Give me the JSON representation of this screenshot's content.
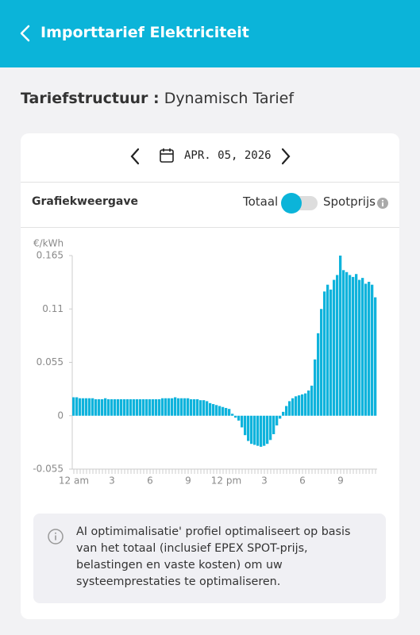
{
  "header": {
    "title": "Importtarief Elektriciteit"
  },
  "tariff": {
    "label": "Tariefstructuur :",
    "value": "Dynamisch Tarief"
  },
  "date": "APR. 05, 2026",
  "view": {
    "label": "Grafiekweergave",
    "left": "Totaal",
    "right": "Spotprijs"
  },
  "chart_data": {
    "type": "bar",
    "y_label": "€/kWh",
    "color": "#0fb3dc",
    "categories": [
      "12 am",
      null,
      null,
      null,
      null,
      null,
      null,
      null,
      null,
      null,
      null,
      null,
      "3",
      null,
      null,
      null,
      null,
      null,
      null,
      null,
      null,
      null,
      null,
      null,
      "6",
      null,
      null,
      null,
      null,
      null,
      null,
      null,
      null,
      null,
      null,
      null,
      "9",
      null,
      null,
      null,
      null,
      null,
      null,
      null,
      null,
      null,
      null,
      null,
      "12 pm",
      null,
      null,
      null,
      null,
      null,
      null,
      null,
      null,
      null,
      null,
      null,
      "3",
      null,
      null,
      null,
      null,
      null,
      null,
      null,
      null,
      null,
      null,
      null,
      "6",
      null,
      null,
      null,
      null,
      null,
      null,
      null,
      null,
      null,
      null,
      null,
      "9",
      null,
      null,
      null,
      null,
      null,
      null,
      null,
      null,
      null,
      null,
      null
    ],
    "values": [
      0.019,
      0.019,
      0.018,
      0.018,
      0.018,
      0.018,
      0.018,
      0.017,
      0.017,
      0.017,
      0.018,
      0.017,
      0.017,
      0.017,
      0.017,
      0.017,
      0.017,
      0.017,
      0.017,
      0.017,
      0.017,
      0.017,
      0.017,
      0.017,
      0.017,
      0.017,
      0.017,
      0.017,
      0.018,
      0.018,
      0.018,
      0.018,
      0.019,
      0.018,
      0.018,
      0.018,
      0.018,
      0.017,
      0.017,
      0.017,
      0.016,
      0.016,
      0.015,
      0.013,
      0.012,
      0.011,
      0.01,
      0.009,
      0.008,
      0.007,
      0.002,
      -0.002,
      -0.005,
      -0.012,
      -0.02,
      -0.026,
      -0.029,
      -0.03,
      -0.031,
      -0.032,
      -0.031,
      -0.029,
      -0.025,
      -0.019,
      -0.01,
      -0.003,
      0.004,
      0.01,
      0.015,
      0.018,
      0.02,
      0.021,
      0.022,
      0.023,
      0.026,
      0.031,
      0.058,
      0.085,
      0.11,
      0.128,
      0.135,
      0.13,
      0.14,
      0.145,
      0.165,
      0.15,
      0.148,
      0.145,
      0.143,
      0.146,
      0.14,
      0.142,
      0.136,
      0.138,
      0.135,
      0.122
    ],
    "ylim": [
      -0.055,
      0.165
    ],
    "yticks": [
      -0.055,
      0,
      0.055,
      0.11,
      0.165
    ]
  },
  "info": {
    "text": "AI optimimalisatie' profiel optimaliseert op basis van het totaal (inclusief EPEX SPOT-prijs, belastingen en vaste kosten) om uw systeemprestaties te optimaliseren."
  }
}
